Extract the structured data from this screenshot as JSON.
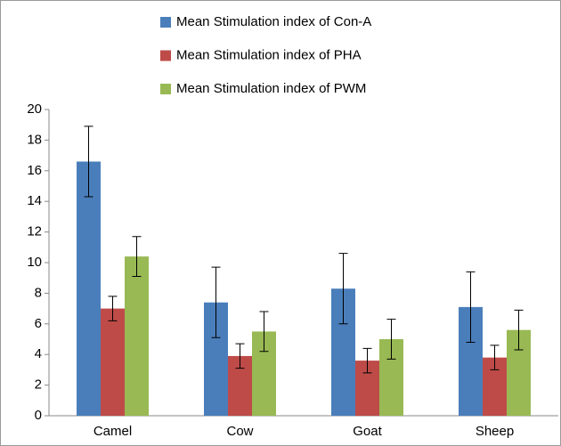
{
  "chart_data": {
    "type": "bar",
    "categories": [
      "Camel",
      "Cow",
      "Goat",
      "Sheep"
    ],
    "series": [
      {
        "name": "Mean Stimulation index of Con-A",
        "color": "#4a7ebb",
        "values": [
          16.6,
          7.4,
          8.3,
          7.1
        ],
        "errors": [
          2.3,
          2.3,
          2.3,
          2.3
        ]
      },
      {
        "name": "Mean Stimulation index of PHA",
        "color": "#be4b48",
        "values": [
          7.0,
          3.9,
          3.6,
          3.8
        ],
        "errors": [
          0.8,
          0.8,
          0.8,
          0.8
        ]
      },
      {
        "name": "Mean Stimulation index of PWM",
        "color": "#98b954",
        "values": [
          10.4,
          5.5,
          5.0,
          5.6
        ],
        "errors": [
          1.3,
          1.3,
          1.3,
          1.3
        ]
      }
    ],
    "ylim": [
      0,
      20
    ],
    "yticks": [
      0,
      2,
      4,
      6,
      8,
      10,
      12,
      14,
      16,
      18,
      20
    ]
  }
}
